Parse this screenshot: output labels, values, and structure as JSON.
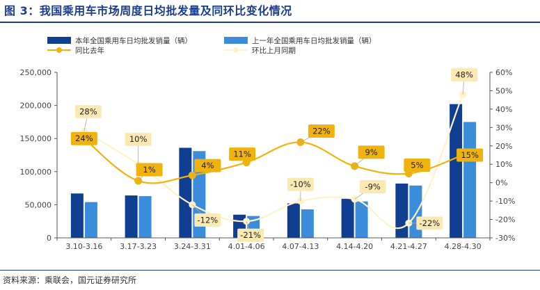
{
  "title": "图 3：我国乘用车市场周度日均批发量及同环比变化情况",
  "source": "资料来源：乘联会，国元证券研究所",
  "colors": {
    "bar_current": "#103f91",
    "bar_last": "#3b8ddb",
    "line_yoy": "#f0b20e",
    "line_mom": "#fff2c8",
    "label_bg": "#fbe9b4",
    "label_bg_yoy": "#f0b20e",
    "title": "#1a3d8f"
  },
  "chart_data": {
    "type": "bar",
    "categories": [
      "3.10-3.16",
      "3.17-3.23",
      "3.24-3.31",
      "4.01-4.06",
      "4.07-4.13",
      "4.14-4.20",
      "4.21-4.27",
      "4.28-4.30"
    ],
    "series": [
      {
        "name": "本年全国乘用车日均批发销量（辆）",
        "type": "bar",
        "axis": "left",
        "values": [
          67000,
          64000,
          136000,
          35000,
          52000,
          59000,
          82000,
          202000
        ]
      },
      {
        "name": "上一年全国乘用车日均批发销量（辆）",
        "type": "bar",
        "axis": "left",
        "values": [
          54000,
          63000,
          131000,
          33000,
          43000,
          55000,
          79000,
          175000
        ]
      },
      {
        "name": "同比去年",
        "type": "line",
        "axis": "right",
        "values": [
          24,
          1,
          4,
          11,
          22,
          9,
          5,
          15
        ],
        "labels": [
          "24%",
          "1%",
          "4%",
          "11%",
          "22%",
          "9%",
          "5%",
          "15%"
        ]
      },
      {
        "name": "环比上月同期",
        "type": "line",
        "axis": "right",
        "values": [
          28,
          10,
          -12,
          -21,
          -10,
          -9,
          -22,
          48
        ],
        "labels": [
          "28%",
          "10%",
          "-12%",
          "-21%",
          "-10%",
          "-9%",
          "-22%",
          "48%"
        ]
      }
    ],
    "y_left": {
      "min": 0,
      "max": 250000,
      "ticks": [
        "0",
        "50,000",
        "100,000",
        "150,000",
        "200,000",
        "250,000"
      ]
    },
    "y_right": {
      "min": -30,
      "max": 60,
      "ticks": [
        "-30%",
        "-20%",
        "-10%",
        "0%",
        "10%",
        "20%",
        "30%",
        "40%",
        "50%",
        "60%"
      ]
    },
    "grid": false,
    "legend": "top"
  }
}
